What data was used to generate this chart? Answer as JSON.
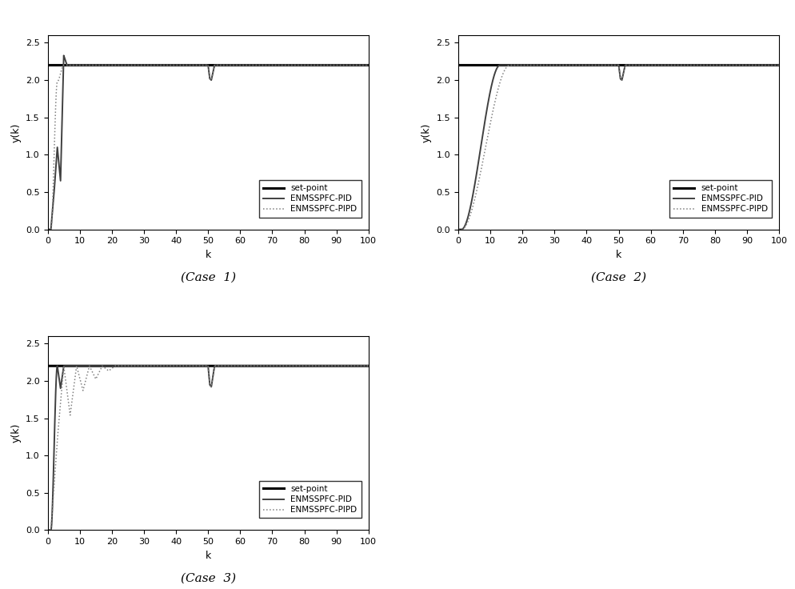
{
  "setpoint": 2.2,
  "xlim": [
    0,
    100
  ],
  "ylim": [
    0,
    2.6
  ],
  "yticks": [
    0,
    0.5,
    1.0,
    1.5,
    2.0,
    2.5
  ],
  "xticks": [
    0,
    10,
    20,
    30,
    40,
    50,
    60,
    70,
    80,
    90,
    100
  ],
  "xlabel": "k",
  "ylabel": "y(k)",
  "legend_labels": [
    "set-point",
    "ENMSSPFC-PID",
    "ENMSSPFC-PIPD"
  ],
  "case_labels": [
    "(Case  1)",
    "(Case  2)",
    "(Case  3)"
  ],
  "background_color": "#ffffff",
  "line_color_setpoint": "#000000",
  "line_color_pid": "#404040",
  "line_color_pipd": "#808080",
  "disturbance_k": 50,
  "disturbance_dip": 2.0
}
